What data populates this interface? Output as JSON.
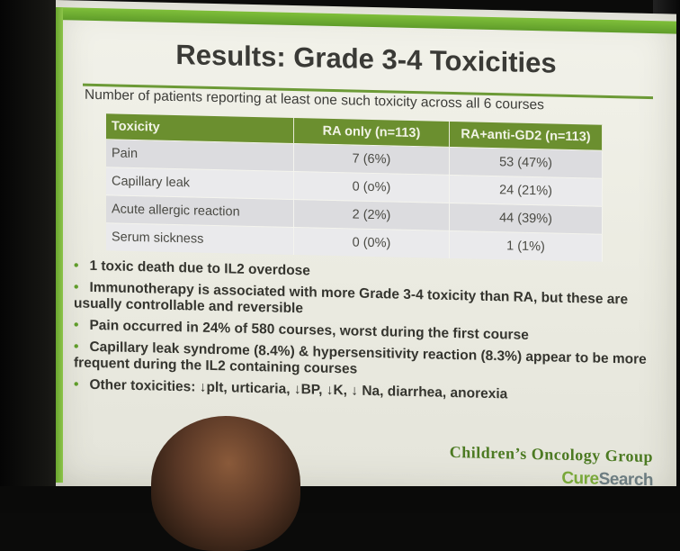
{
  "slide": {
    "title": "Results: Grade 3-4 Toxicities",
    "subtitle": "Number of patients reporting at least one such toxicity across all 6 courses",
    "table": {
      "headers": [
        "Toxicity",
        "RA only (n=113)",
        "RA+anti-GD2 (n=113)"
      ],
      "rows": [
        [
          "Pain",
          "7 (6%)",
          "53 (47%)"
        ],
        [
          "Capillary leak",
          "0 (o%)",
          "24 (21%)"
        ],
        [
          "Acute allergic reaction",
          "2 (2%)",
          "44 (39%)"
        ],
        [
          "Serum sickness",
          "0 (0%)",
          "1 (1%)"
        ]
      ]
    },
    "bullets": [
      "1 toxic death due to IL2 overdose",
      "Immunotherapy is associated with more Grade 3-4 toxicity than RA, but these are usually controllable and reversible",
      "Pain occurred in 24% of 580 courses, worst during the first course",
      "Capillary leak syndrome (8.4%) & hypersensitivity reaction (8.3%) appear to be more frequent during the IL2 containing courses",
      "Other toxicities: ↓plt, urticaria, ↓BP, ↓K, ↓ Na, diarrhea, anorexia"
    ],
    "bullet_symbol": "•",
    "footer_org": "Children’s Oncology Group",
    "footer_brand_a": "Cure",
    "footer_brand_b": "Search"
  },
  "colors": {
    "accent_green": "#6b8f2f",
    "slide_bg": "#ebebe1",
    "brand_grey": "#6c7c80"
  }
}
